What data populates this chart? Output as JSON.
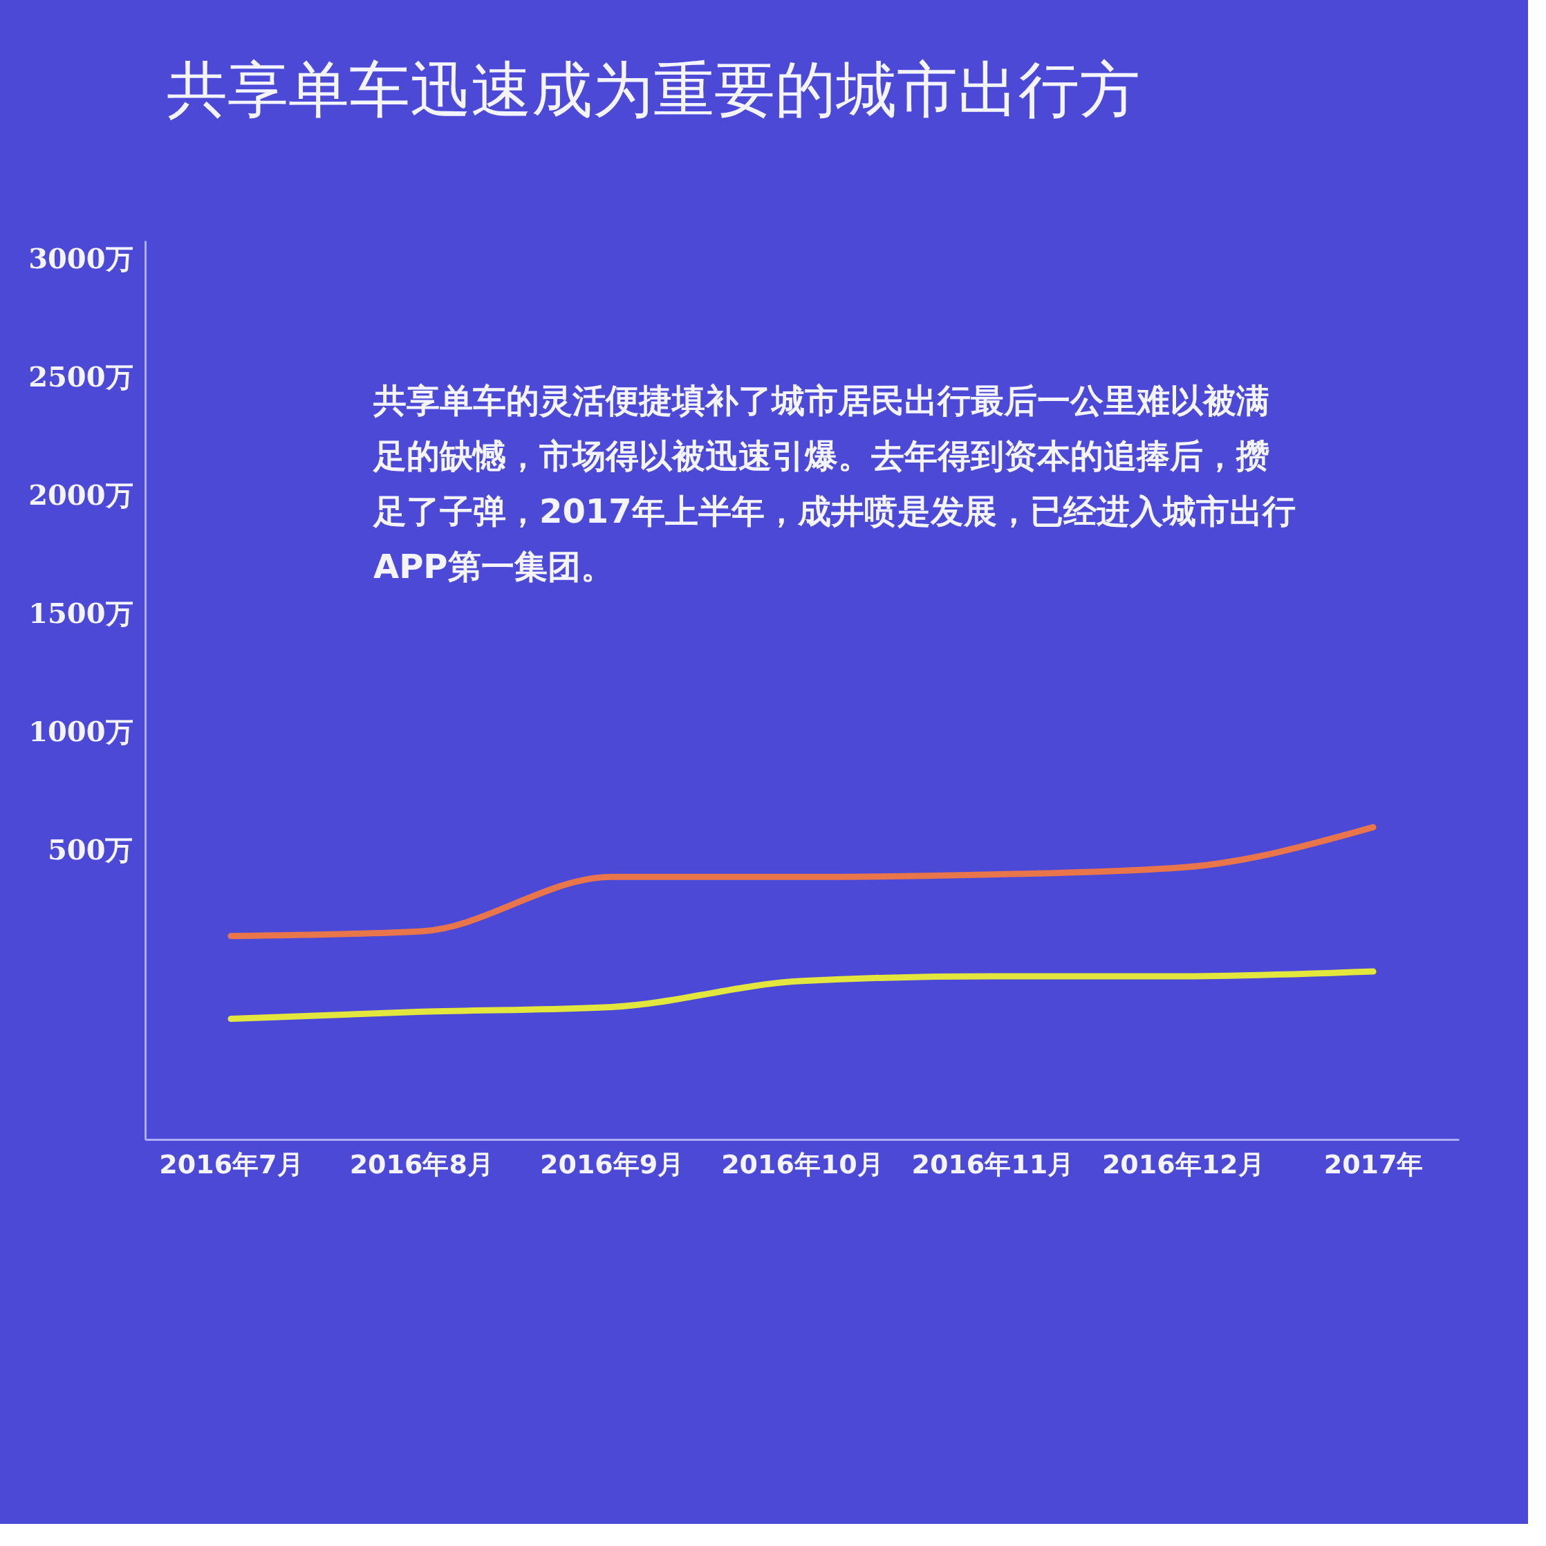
{
  "chart_data": {
    "type": "line",
    "title": "共享单车迅速成为重要的城市出行方",
    "annotations": [
      "共享单车的灵活便捷填补了城市居民出行最后一公里难以被满足的缺憾，市场得以被迅速引爆。去年得到资本的追捧后，攒足了子弹，2017年上半年，成井喷是发展，已经进入城市出行APP第一集团。"
    ],
    "categories": [
      "2016年7月",
      "2016年8月",
      "2016年9月",
      "2016年10月",
      "2016年11月",
      "2016年12月",
      "2017年"
    ],
    "series": [
      {
        "color": "#e8764a",
        "values": [
          140,
          160,
          390,
          390,
          400,
          430,
          600
        ]
      },
      {
        "color": "#e3e63c",
        "values": [
          -210,
          -180,
          -160,
          -50,
          -30,
          -30,
          -10
        ]
      }
    ],
    "ylim": [
      -720,
      3080
    ],
    "yticks": [
      {
        "value": 500,
        "label": "500万"
      },
      {
        "value": 1000,
        "label": "1000万"
      },
      {
        "value": 1500,
        "label": "1500万"
      },
      {
        "value": 2000,
        "label": "2000万"
      },
      {
        "value": 2500,
        "label": "2500万"
      },
      {
        "value": 3000,
        "label": "3000万"
      }
    ],
    "grid": false,
    "legend": false,
    "marker": "none",
    "line_style": "solid"
  }
}
